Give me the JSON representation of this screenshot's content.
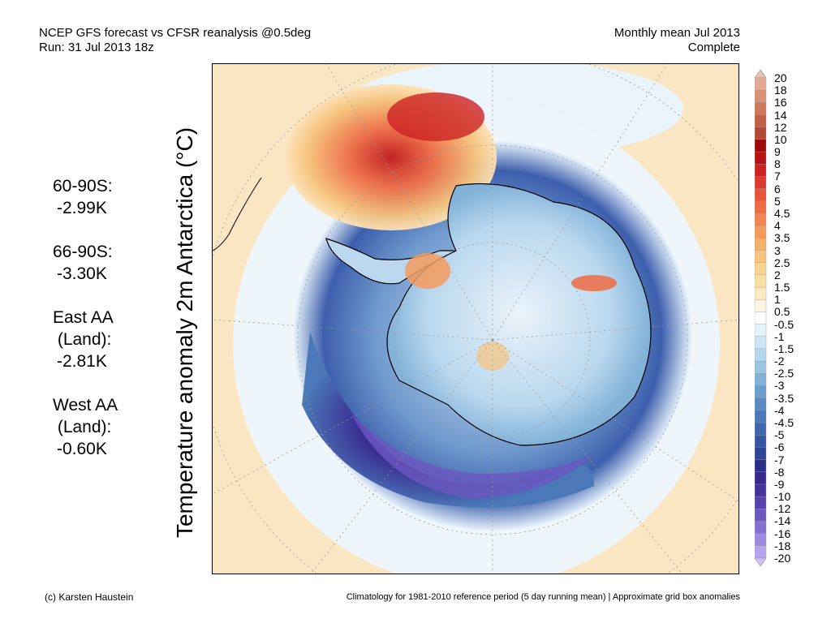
{
  "header": {
    "title_line1": "NCEP GFS forecast vs CFSR reanalysis @0.5deg",
    "title_line2": "Run: 31 Jul 2013 18z",
    "right_line1": "Monthly mean Jul 2013",
    "right_line2": "Complete"
  },
  "ylabel": "Temperature anomaly 2m Antarctica (°C)",
  "stats": [
    {
      "region": "60-90S:",
      "value": "-2.99K"
    },
    {
      "region": "66-90S:",
      "value": "-3.30K"
    },
    {
      "region": "East AA\n(Land):",
      "value": "-2.81K"
    },
    {
      "region": "West AA\n(Land):",
      "value": "-0.60K"
    }
  ],
  "colorbar": {
    "labels": [
      "20",
      "18",
      "16",
      "14",
      "12",
      "10",
      "9",
      "8",
      "7",
      "6",
      "5",
      "4.5",
      "4",
      "3.5",
      "3",
      "2.5",
      "2",
      "1.5",
      "1",
      "0.5",
      "-0.5",
      "-1",
      "-1.5",
      "-2",
      "-2.5",
      "-3",
      "-3.5",
      "-4",
      "-4.5",
      "-5",
      "-6",
      "-7",
      "-8",
      "-9",
      "-10",
      "-12",
      "-14",
      "-16",
      "-18",
      "-20"
    ],
    "colors": [
      "#eac1b2",
      "#e3ab93",
      "#d99275",
      "#cc7a5b",
      "#c06247",
      "#b24a35",
      "#9e0a0a",
      "#b81414",
      "#cc2222",
      "#dd3a2e",
      "#e8553a",
      "#ee6c44",
      "#f2844f",
      "#f49b5c",
      "#f5b06a",
      "#f6c47c",
      "#f7d48f",
      "#f8e0a4",
      "#faeac0",
      "#fdf5e0",
      "#ffffff",
      "#e6f2fb",
      "#cce6f4",
      "#b3d8ee",
      "#9ac6e3",
      "#82b2d8",
      "#6c9ecd",
      "#5a8bc2",
      "#4a78b8",
      "#3f66ae",
      "#3655a2",
      "#2e4495",
      "#2a2e86",
      "#36288c",
      "#45329c",
      "#5843ad",
      "#6c58c0",
      "#8470d2",
      "#9e8ae0",
      "#b8a6ec",
      "#d0c2f6"
    ]
  },
  "footer": {
    "credit": "(c) Karsten Haustein",
    "note": "Climatology for 1981-2010 reference period (5 day running mean) | Approximate grid box anomalies"
  }
}
